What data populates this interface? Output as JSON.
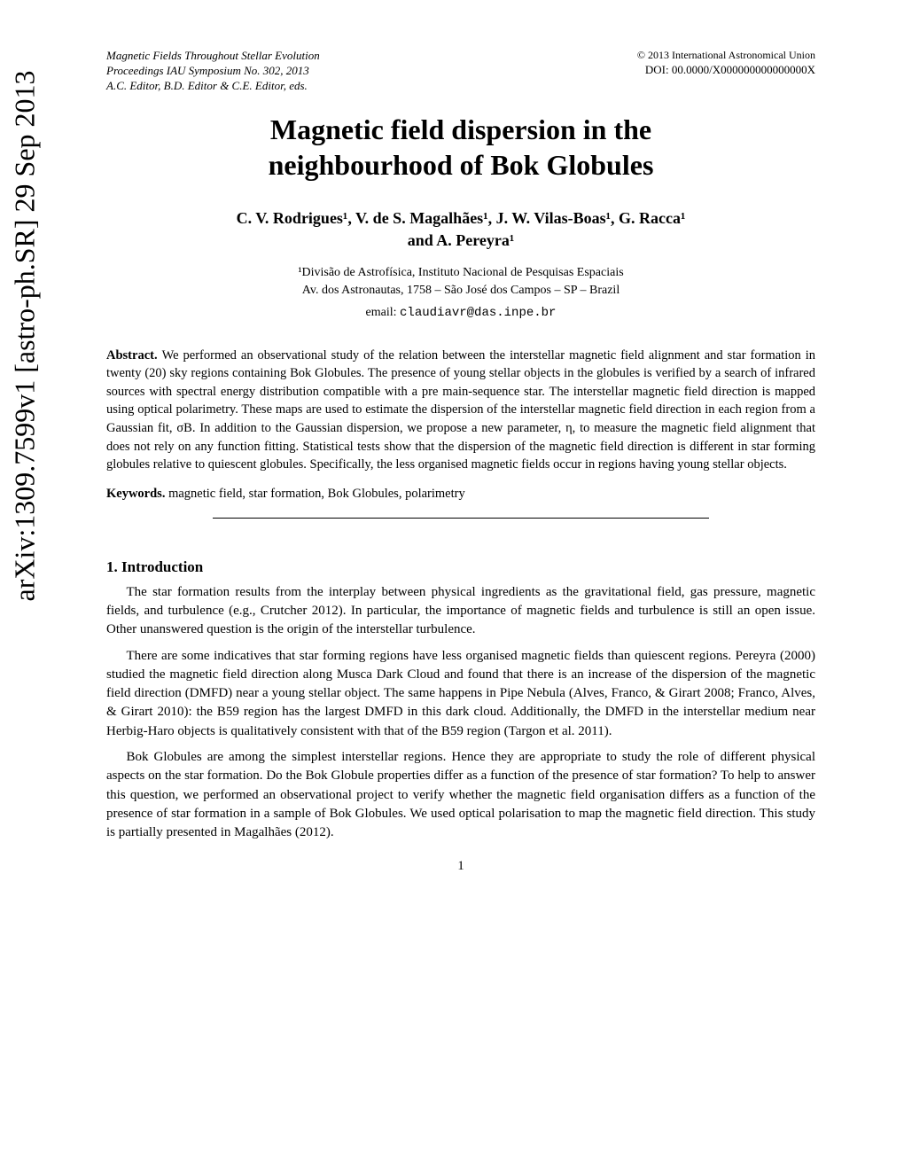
{
  "arxiv": "arXiv:1309.7599v1  [astro-ph.SR]  29 Sep 2013",
  "header": {
    "left_line1": "Magnetic Fields Throughout Stellar Evolution",
    "left_line2": "Proceedings IAU Symposium No. 302, 2013",
    "left_line3": "A.C. Editor, B.D. Editor & C.E. Editor, eds.",
    "right_line1": "© 2013 International Astronomical Union",
    "right_line2": "DOI: 00.0000/X000000000000000X"
  },
  "title_line1": "Magnetic field dispersion in the",
  "title_line2": "neighbourhood of Bok Globules",
  "authors_line1": "C. V. Rodrigues¹, V. de S. Magalhães¹, J. W. Vilas-Boas¹, G. Racca¹",
  "authors_line2": "and A. Pereyra¹",
  "affiliation_line1": "¹Divisão de Astrofísica, Instituto Nacional de Pesquisas Espaciais",
  "affiliation_line2": "Av. dos Astronautas, 1758 – São José dos Campos – SP – Brazil",
  "email_label": "email: ",
  "email": "claudiavr@das.inpe.br",
  "abstract_label": "Abstract. ",
  "abstract_text": "We performed an observational study of the relation between the interstellar magnetic field alignment and star formation in twenty (20) sky regions containing Bok Globules. The presence of young stellar objects in the globules is verified by a search of infrared sources with spectral energy distribution compatible with a pre main-sequence star. The interstellar magnetic field direction is mapped using optical polarimetry. These maps are used to estimate the dispersion of the interstellar magnetic field direction in each region from a Gaussian fit, σB. In addition to the Gaussian dispersion, we propose a new parameter, η, to measure the magnetic field alignment that does not rely on any function fitting. Statistical tests show that the dispersion of the magnetic field direction is different in star forming globules relative to quiescent globules. Specifically, the less organised magnetic fields occur in regions having young stellar objects.",
  "keywords_label": "Keywords. ",
  "keywords_text": "magnetic field, star formation, Bok Globules, polarimetry",
  "section1_heading": "1. Introduction",
  "para1": "The star formation results from the interplay between physical ingredients as the gravitational field, gas pressure, magnetic fields, and turbulence (e.g., Crutcher 2012). In particular, the importance of magnetic fields and turbulence is still an open issue. Other unanswered question is the origin of the interstellar turbulence.",
  "para2": "There are some indicatives that star forming regions have less organised magnetic fields than quiescent regions. Pereyra (2000) studied the magnetic field direction along Musca Dark Cloud and found that there is an increase of the dispersion of the magnetic field direction (DMFD) near a young stellar object. The same happens in Pipe Nebula (Alves, Franco, & Girart 2008; Franco, Alves, & Girart 2010): the B59 region has the largest DMFD in this dark cloud. Additionally, the DMFD in the interstellar medium near Herbig-Haro objects is qualitatively consistent with that of the B59 region (Targon et al. 2011).",
  "para3": "Bok Globules are among the simplest interstellar regions. Hence they are appropriate to study the role of different physical aspects on the star formation. Do the Bok Globule properties differ as a function of the presence of star formation? To help to answer this question, we performed an observational project to verify whether the magnetic field organisation differs as a function of the presence of star formation in a sample of Bok Globules. We used optical polarisation to map the magnetic field direction. This study is partially presented in Magalhães (2012).",
  "page_number": "1"
}
